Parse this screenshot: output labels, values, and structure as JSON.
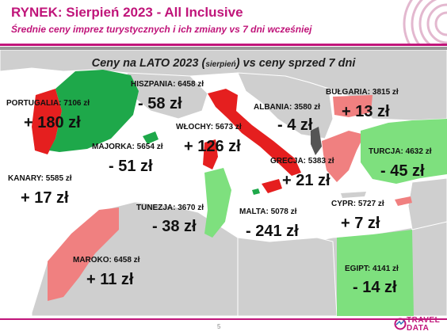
{
  "header": {
    "title": "RYNEK: Sierpień 2023 - All Inclusive",
    "subtitle": "Średnie ceny imprez turystycznych i ich zmiany vs 7 dni wcześniej"
  },
  "map": {
    "title_main": "Ceny na LATO 2023 (",
    "title_small": "sierpień",
    "title_end": ") vs ceny sprzed 7 dni"
  },
  "countries": [
    {
      "id": "hiszpania",
      "label": "HISZPANIA: 6458 zł",
      "change": "- 58 zł",
      "color": "#1ea84a"
    },
    {
      "id": "portugalia",
      "label": "PORTUGALIA: 7106 zł",
      "change": "+ 180 zł",
      "color": "#e51f1f"
    },
    {
      "id": "wlochy",
      "label": "WŁOCHY: 5673 zł",
      "change": "+ 126 zł",
      "color": "#e51f1f"
    },
    {
      "id": "majorka",
      "label": "MAJORKA: 5654 zł",
      "change": "- 51 zł",
      "color": "#1ea84a"
    },
    {
      "id": "albania",
      "label": "ALBANIA: 3580 zł",
      "change": "- 4 zł",
      "color": "#555555"
    },
    {
      "id": "bulgaria",
      "label": "BUŁGARIA: 3815 zł",
      "change": "+ 13 zł",
      "color": "#f08080"
    },
    {
      "id": "turcja",
      "label": "TURCJA: 4632 zł",
      "change": "- 45 zł",
      "color": "#7ee07e"
    },
    {
      "id": "grecja",
      "label": "GRECJA: 5383 zł",
      "change": "+ 21 zł",
      "color": "#f08080"
    },
    {
      "id": "kanary",
      "label": "KANARY: 5585 zł",
      "change": "+ 17 zł",
      "color": "#f08080"
    },
    {
      "id": "tunezja",
      "label": "TUNEZJA: 3670 zł",
      "change": "- 38 zł",
      "color": "#7ee07e"
    },
    {
      "id": "malta",
      "label": "MALTA: 5078 zł",
      "change": "- 241 zł",
      "color": "#1ea84a"
    },
    {
      "id": "cypr",
      "label": "CYPR: 5727 zł",
      "change": "+ 7 zł",
      "color": "#f08080"
    },
    {
      "id": "maroko",
      "label": "MAROKO: 6458 zł",
      "change": "+ 11 zł",
      "color": "#f08080"
    },
    {
      "id": "egipt",
      "label": "EGIPT: 4141 zł",
      "change": "- 14 zł",
      "color": "#7ee07e"
    }
  ],
  "footer": {
    "page_number": "5",
    "logo_line1": "TRAVEL",
    "logo_line2": "DATA"
  },
  "colors": {
    "brand": "#c0157a",
    "sea": "#ffffff",
    "land": "#cfcfcf",
    "increase_strong": "#e51f1f",
    "increase_light": "#f08080",
    "decrease_strong": "#1ea84a",
    "decrease_light": "#7ee07e"
  }
}
